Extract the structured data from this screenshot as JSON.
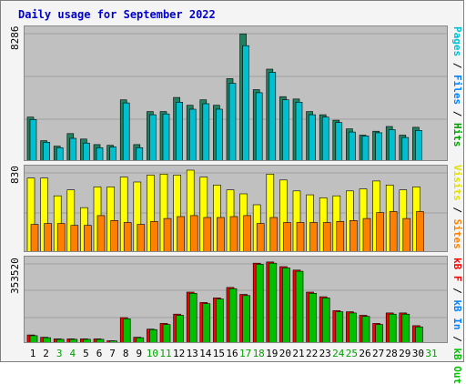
{
  "title": "Daily usage for September 2022",
  "colors": {
    "pages": "#00c0d0",
    "files": "#0080c0",
    "hits": "#00c000",
    "visits": "#ffff00",
    "sites": "#ff8000",
    "kb_in": "#0080ff",
    "kb_out": "#00c000",
    "kb_f": "#ff0000",
    "title": "#0000c8",
    "panel_bg": "#c0c0c0",
    "weekend_label": "#00a000"
  },
  "legends": {
    "top": [
      {
        "text": "Pages",
        "color": "#00c0d0"
      },
      {
        "text": " / ",
        "color": "#000000"
      },
      {
        "text": "Files",
        "color": "#0080ff"
      },
      {
        "text": " / ",
        "color": "#000000"
      },
      {
        "text": "Hits",
        "color": "#00a000"
      }
    ],
    "middle": [
      {
        "text": "Visits",
        "color": "#e0e000"
      },
      {
        "text": " / ",
        "color": "#000000"
      },
      {
        "text": "Sites",
        "color": "#ff8000"
      }
    ],
    "bottom": [
      {
        "text": "kB F",
        "color": "#ff0000"
      },
      {
        "text": " / ",
        "color": "#000000"
      },
      {
        "text": "kB In",
        "color": "#0080ff"
      },
      {
        "text": " / ",
        "color": "#000000"
      },
      {
        "text": "kB Out",
        "color": "#00c000"
      }
    ]
  },
  "chart_data": [
    {
      "type": "bar",
      "name_ref": "hits-files",
      "ymax_label": "8286",
      "ylim": [
        0,
        8286
      ],
      "categories": [
        "1",
        "2",
        "3",
        "4",
        "5",
        "6",
        "7",
        "8",
        "9",
        "10",
        "11",
        "12",
        "13",
        "14",
        "15",
        "16",
        "17",
        "18",
        "19",
        "20",
        "21",
        "22",
        "23",
        "24",
        "25",
        "26",
        "27",
        "28",
        "29",
        "30",
        "31"
      ],
      "series": [
        {
          "name": "Hits",
          "values": [
            2800,
            1300,
            950,
            1750,
            1400,
            1050,
            1000,
            3900,
            1050,
            3150,
            3150,
            4050,
            3550,
            3900,
            3550,
            5250,
            8100,
            4550,
            5850,
            4100,
            3950,
            3150,
            2950,
            2600,
            2050,
            1650,
            1900,
            2200,
            1650,
            2150,
            0
          ]
        },
        {
          "name": "Files",
          "values": [
            2650,
            1200,
            850,
            1450,
            1150,
            850,
            900,
            3700,
            850,
            2950,
            3000,
            3750,
            3300,
            3650,
            3300,
            4950,
            7350,
            4350,
            5650,
            3900,
            3750,
            2950,
            2800,
            2450,
            1850,
            1600,
            1800,
            2000,
            1500,
            1950,
            0
          ]
        }
      ]
    },
    {
      "type": "bar",
      "name_ref": "visits-sites",
      "ymax_label": "830",
      "ylim": [
        0,
        830
      ],
      "categories": [
        "1",
        "2",
        "3",
        "4",
        "5",
        "6",
        "7",
        "8",
        "9",
        "10",
        "11",
        "12",
        "13",
        "14",
        "15",
        "16",
        "17",
        "18",
        "19",
        "20",
        "21",
        "22",
        "23",
        "24",
        "25",
        "26",
        "27",
        "28",
        "29",
        "30",
        "31"
      ],
      "series": [
        {
          "name": "Visits",
          "values": [
            750,
            750,
            570,
            630,
            450,
            660,
            660,
            760,
            710,
            780,
            790,
            780,
            830,
            760,
            680,
            630,
            590,
            480,
            790,
            730,
            620,
            580,
            550,
            570,
            620,
            640,
            720,
            680,
            630,
            660,
            0
          ]
        },
        {
          "name": "Sites",
          "values": [
            280,
            290,
            290,
            270,
            270,
            370,
            320,
            300,
            280,
            310,
            340,
            360,
            370,
            350,
            350,
            360,
            370,
            290,
            350,
            300,
            300,
            300,
            300,
            310,
            320,
            340,
            400,
            410,
            340,
            410,
            0
          ]
        }
      ]
    },
    {
      "type": "bar",
      "name_ref": "kbytes",
      "ymax_label": "353520",
      "ylim": [
        0,
        353520
      ],
      "categories": [
        "1",
        "2",
        "3",
        "4",
        "5",
        "6",
        "7",
        "8",
        "9",
        "10",
        "11",
        "12",
        "13",
        "14",
        "15",
        "16",
        "17",
        "18",
        "19",
        "20",
        "21",
        "22",
        "23",
        "24",
        "25",
        "26",
        "27",
        "28",
        "29",
        "30",
        "31"
      ],
      "series": [
        {
          "name": "kB F",
          "values": [
            35000,
            25000,
            18000,
            18000,
            18000,
            18000,
            10000,
            110000,
            25000,
            60000,
            85000,
            125000,
            220000,
            175000,
            195000,
            240000,
            210000,
            345000,
            350000,
            330000,
            315000,
            220000,
            200000,
            140000,
            135000,
            120000,
            85000,
            130000,
            130000,
            75000,
            0
          ]
        },
        {
          "name": "kB Out",
          "values": [
            32000,
            23000,
            16000,
            16000,
            16000,
            16000,
            9000,
            105000,
            23000,
            58000,
            80000,
            120000,
            215000,
            170000,
            190000,
            235000,
            205000,
            340000,
            345000,
            325000,
            310000,
            215000,
            195000,
            135000,
            130000,
            115000,
            80000,
            125000,
            125000,
            70000,
            0
          ]
        }
      ]
    }
  ],
  "weekend_days": [
    "3",
    "4",
    "10",
    "11",
    "17",
    "18",
    "24",
    "25",
    "31"
  ]
}
